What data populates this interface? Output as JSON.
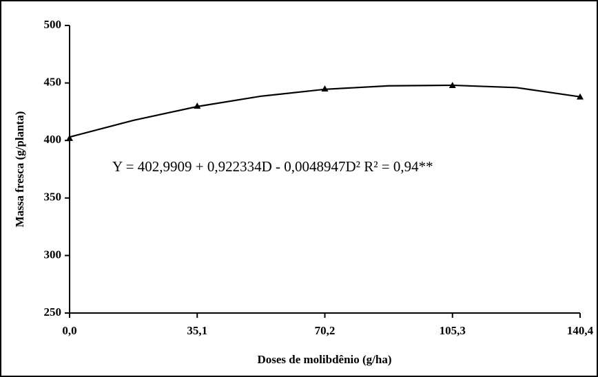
{
  "chart_data": {
    "type": "line",
    "xlabel": "Doses de molibdênio (g/ha)",
    "ylabel": "Massa fresca (g/planta)",
    "annotation": "Y = 402,9909 + 0,922334D - 0,0048947D² R² = 0,94**",
    "xlim": [
      0,
      140.4
    ],
    "xticks": [
      {
        "value": 0,
        "label": "0,0"
      },
      {
        "value": 35.1,
        "label": "35,1"
      },
      {
        "value": 70.2,
        "label": "70,2"
      },
      {
        "value": 105.3,
        "label": "105,3"
      },
      {
        "value": 140.4,
        "label": "140,4"
      }
    ],
    "ylim": [
      250,
      500
    ],
    "yticks": [
      250,
      300,
      350,
      400,
      450,
      500
    ],
    "series": [
      {
        "color": "#000000",
        "marker": "triangle",
        "line": false,
        "x": [
          0,
          35.1,
          70.2,
          105.3,
          140.4
        ],
        "values": [
          402,
          430,
          445,
          448,
          438
        ]
      },
      {
        "color": "#000000",
        "marker": null,
        "line": true,
        "x": [
          0,
          17.55,
          35.1,
          52.65,
          70.2,
          87.75,
          105.3,
          122.85,
          140.4
        ],
        "values": [
          403,
          417.5,
          429.5,
          438.5,
          444.5,
          447.5,
          448,
          446,
          438
        ]
      }
    ]
  }
}
